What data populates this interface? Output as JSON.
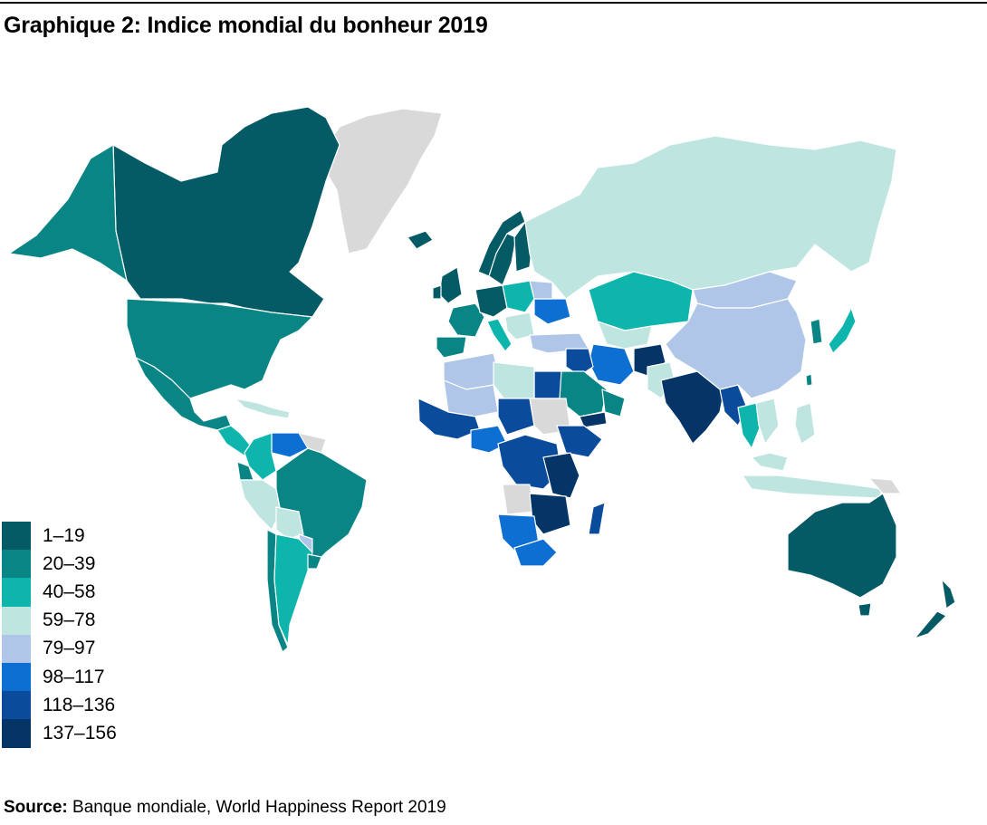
{
  "title": "Graphique 2: Indice mondial du bonheur 2019",
  "legend": [
    {
      "label": "1–19",
      "color": "#055b65"
    },
    {
      "label": "20–39",
      "color": "#0a8585"
    },
    {
      "label": "40–58",
      "color": "#0db5ad"
    },
    {
      "label": "59–78",
      "color": "#bfe5e1"
    },
    {
      "label": "79–97",
      "color": "#afc6e9"
    },
    {
      "label": "98–117",
      "color": "#0c6fd1"
    },
    {
      "label": "118–136",
      "color": "#0a4b9c"
    },
    {
      "label": "137–156",
      "color": "#053466"
    }
  ],
  "no_data_color": "#d9d9d9",
  "source": {
    "label": "Source:",
    "text": " Banque mondiale, World Happiness Report 2019"
  }
}
